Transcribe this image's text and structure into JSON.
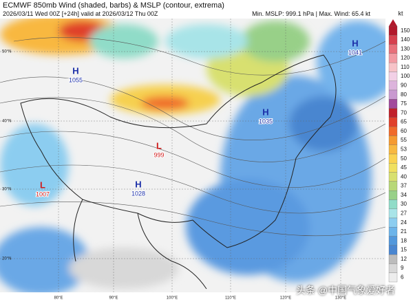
{
  "header": {
    "title": "ECMWF 850mb Wind (shaded, barbs) & MSLP (contour, extrema)",
    "subtitle": "2026/03/11 Wed 00Z [+24h] valid at 2026/03/12 Thu 00Z",
    "stats": "Min. MSLP: 999.1 hPa | Max. Wind: 65.4 kt"
  },
  "map": {
    "lat_labels": [
      "50°N",
      "40°N",
      "30°N",
      "20°N"
    ],
    "lon_labels": [
      "80°E",
      "90°E",
      "100°E",
      "110°E",
      "120°E",
      "130°E"
    ],
    "pressure_centers": [
      {
        "kind": "H",
        "value": 1055
      },
      {
        "kind": "H",
        "value": 1041
      },
      {
        "kind": "H",
        "value": 1035
      },
      {
        "kind": "H",
        "value": 1028
      },
      {
        "kind": "L",
        "value": 999
      },
      {
        "kind": "L",
        "value": 1007
      }
    ]
  },
  "colorbar": {
    "unit": "kt",
    "levels": [
      150,
      140,
      130,
      120,
      110,
      100,
      90,
      80,
      75,
      70,
      65,
      60,
      55,
      53,
      50,
      45,
      40,
      37,
      34,
      30,
      27,
      24,
      21,
      18,
      15,
      12,
      9,
      6
    ],
    "colors": [
      "#b2182b",
      "#d6404e",
      "#e8707a",
      "#f29ba3",
      "#f7c3c8",
      "#f2d0e6",
      "#dcb4dc",
      "#c99ad0",
      "#a24a9c",
      "#c0202a",
      "#e0402a",
      "#f06a2a",
      "#f59a30",
      "#f8b840",
      "#fad250",
      "#f0e060",
      "#d8e070",
      "#b8d878",
      "#98d088",
      "#90dcc8",
      "#a8e4e8",
      "#8ccdf0",
      "#6cb4ea",
      "#5298dc",
      "#4a86d0",
      "#bcbcbc",
      "#d8d8d8",
      "#ededed"
    ]
  },
  "watermark": "头条 @中国气象爱好者"
}
